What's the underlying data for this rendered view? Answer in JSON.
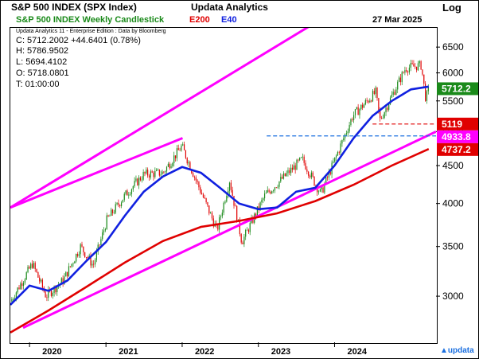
{
  "header": {
    "title": "S&P 500 INDEX (SPX Index)",
    "app": "Updata Analytics",
    "scale_label": "Log"
  },
  "legend": {
    "name": "S&P 500 INDEX Weekly Candlestick",
    "e200": "E200",
    "e40": "E40",
    "date": "27 Mar 2025",
    "colors": {
      "name": "#1a8a1a",
      "e200": "#e00000",
      "e40": "#1020e0"
    }
  },
  "info": {
    "edition": "Updata Analytics 11 - Enterprise Edition : Data by Bloomberg",
    "close": "C: 5712.2002  +44.6401 (0.78%)",
    "high": "H: 5786.9502",
    "low": "L: 5694.4102",
    "open": "O: 5718.0801",
    "time": "T: 01:00:00"
  },
  "logo": "updata",
  "chart_data": {
    "type": "candlestick",
    "scale": "log",
    "ylim": [
      2600,
      6900
    ],
    "yticks": [
      3000,
      3500,
      4000,
      4500,
      5000,
      5500,
      6000,
      6500
    ],
    "xlim": [
      "2019-10-01",
      "2025-05-01"
    ],
    "xticks": [
      {
        "label": "2020",
        "date": "2020-01-01"
      },
      {
        "label": "2021",
        "date": "2021-01-01"
      },
      {
        "label": "2022",
        "date": "2022-01-01"
      },
      {
        "label": "2023",
        "date": "2023-01-01"
      },
      {
        "label": "2024",
        "date": "2024-01-01"
      }
    ],
    "price_path": [
      [
        "2019-10-01",
        2950
      ],
      [
        "2020-01-15",
        3320
      ],
      [
        "2020-03-20",
        3000
      ],
      [
        "2020-06-10",
        3150
      ],
      [
        "2020-09-01",
        3500
      ],
      [
        "2020-11-01",
        3300
      ],
      [
        "2021-01-05",
        3800
      ],
      [
        "2021-04-01",
        4100
      ],
      [
        "2021-07-01",
        4380
      ],
      [
        "2021-10-01",
        4400
      ],
      [
        "2021-12-30",
        4780
      ],
      [
        "2022-03-01",
        4350
      ],
      [
        "2022-06-17",
        3680
      ],
      [
        "2022-08-16",
        4300
      ],
      [
        "2022-10-14",
        3550
      ],
      [
        "2023-02-01",
        4100
      ],
      [
        "2023-07-30",
        4590
      ],
      [
        "2023-10-27",
        4120
      ],
      [
        "2024-03-28",
        5250
      ],
      [
        "2024-07-16",
        5650
      ],
      [
        "2024-08-05",
        5180
      ],
      [
        "2024-12-06",
        6090
      ],
      [
        "2025-02-19",
        6144
      ],
      [
        "2025-03-13",
        5520
      ],
      [
        "2025-03-27",
        5712
      ]
    ],
    "series": [
      {
        "name": "E40",
        "color": "#1020e0",
        "points": [
          [
            "2019-10-01",
            2920
          ],
          [
            "2020-01-01",
            3100
          ],
          [
            "2020-04-01",
            3050
          ],
          [
            "2020-07-01",
            3150
          ],
          [
            "2020-10-01",
            3350
          ],
          [
            "2021-01-01",
            3550
          ],
          [
            "2021-04-01",
            3850
          ],
          [
            "2021-07-01",
            4150
          ],
          [
            "2021-10-01",
            4350
          ],
          [
            "2022-01-01",
            4480
          ],
          [
            "2022-04-01",
            4400
          ],
          [
            "2022-07-01",
            4200
          ],
          [
            "2022-10-01",
            4000
          ],
          [
            "2023-01-01",
            3930
          ],
          [
            "2023-04-01",
            3950
          ],
          [
            "2023-07-01",
            4150
          ],
          [
            "2023-10-01",
            4200
          ],
          [
            "2024-01-01",
            4500
          ],
          [
            "2024-04-01",
            4900
          ],
          [
            "2024-07-01",
            5250
          ],
          [
            "2024-10-01",
            5500
          ],
          [
            "2025-01-01",
            5700
          ],
          [
            "2025-03-27",
            5750
          ]
        ]
      },
      {
        "name": "E200",
        "color": "#e00000",
        "points": [
          [
            "2019-10-01",
            2680
          ],
          [
            "2020-04-01",
            2870
          ],
          [
            "2020-10-01",
            3090
          ],
          [
            "2021-04-01",
            3330
          ],
          [
            "2021-10-01",
            3560
          ],
          [
            "2022-04-01",
            3720
          ],
          [
            "2022-10-01",
            3790
          ],
          [
            "2023-04-01",
            3880
          ],
          [
            "2023-10-01",
            4030
          ],
          [
            "2024-04-01",
            4240
          ],
          [
            "2024-10-01",
            4500
          ],
          [
            "2025-03-27",
            4737
          ]
        ]
      }
    ],
    "trendlines": [
      {
        "from": [
          "2019-10-01",
          3950
        ],
        "to": [
          "2022-01-03",
          4900
        ],
        "color": "#ff00ff"
      },
      {
        "from": [
          "2019-10-01",
          3950
        ],
        "to": [
          "2025-05-01",
          8800
        ],
        "color": "#ff00ff"
      },
      {
        "from": [
          "2019-12-01",
          2720
        ],
        "to": [
          "2025-05-01",
          5000
        ],
        "color": "#ff00ff"
      }
    ],
    "levels": [
      {
        "value": 5119,
        "from": "2024-07-01",
        "color": "#e00000",
        "dashed": true
      },
      {
        "value": 4933.8,
        "from": "2023-02-10",
        "color": "#1a6fe0",
        "dashed": true
      }
    ],
    "badges": [
      {
        "label": "5712.2",
        "value": 5712.2,
        "bg": "#1a8a1a"
      },
      {
        "label": "5119",
        "value": 5119,
        "bg": "#e00000"
      },
      {
        "label": "4933.8",
        "value": 4933.8,
        "bg": "#ff00ff"
      },
      {
        "label": "4737.2",
        "value": 4737.2,
        "bg": "#e00000"
      }
    ]
  }
}
